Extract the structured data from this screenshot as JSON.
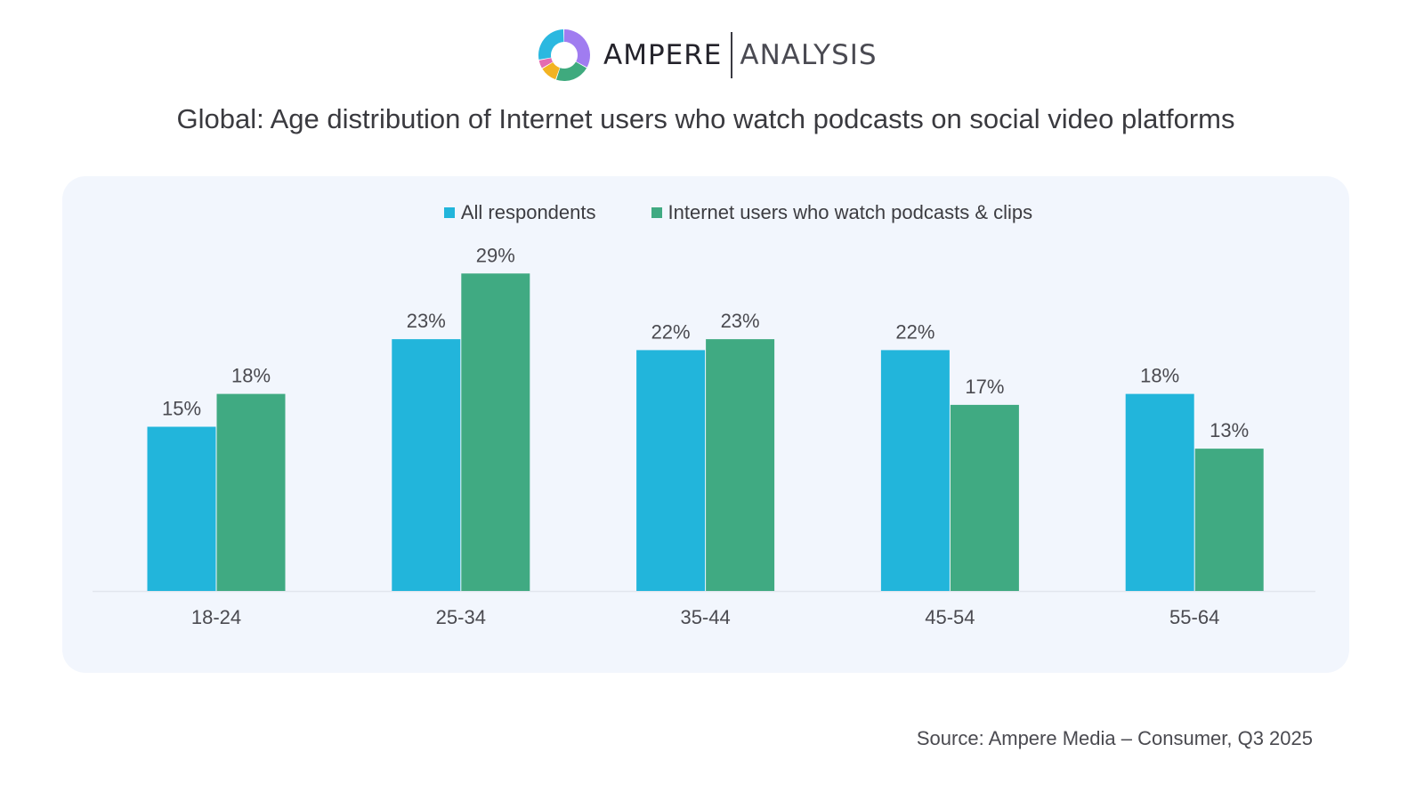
{
  "brand": {
    "name_primary": "AMPERE",
    "name_secondary": "ANALYSIS",
    "logo_icon": "donut-ring-logo",
    "logo_colors": [
      "#2BB8E0",
      "#A07CF0",
      "#3FAA7E",
      "#F2B322",
      "#E46BB0"
    ]
  },
  "colors": {
    "series_all": "#22B5DB",
    "series_podcast": "#40AA82",
    "panel_bg": "#F2F6FD",
    "label_text": "#4A4A50"
  },
  "chart_data": {
    "type": "bar",
    "title": "Global: Age distribution of Internet users who watch podcasts on social video platforms",
    "xlabel": "",
    "ylabel": "",
    "ylim": [
      0,
      30
    ],
    "grid": false,
    "legend_position": "top-center",
    "categories": [
      "18-24",
      "25-34",
      "35-44",
      "45-54",
      "55-64"
    ],
    "series": [
      {
        "name": "All respondents",
        "color": "#22B5DB",
        "values": [
          15,
          23,
          22,
          22,
          18
        ],
        "labels": [
          "15%",
          "23%",
          "22%",
          "22%",
          "18%"
        ]
      },
      {
        "name": "Internet users who watch podcasts & clips",
        "color": "#40AA82",
        "values": [
          18,
          29,
          23,
          17,
          13
        ],
        "labels": [
          "18%",
          "29%",
          "23%",
          "17%",
          "13%"
        ]
      }
    ],
    "source": "Source: Ampere Media – Consumer, Q3 2025"
  }
}
